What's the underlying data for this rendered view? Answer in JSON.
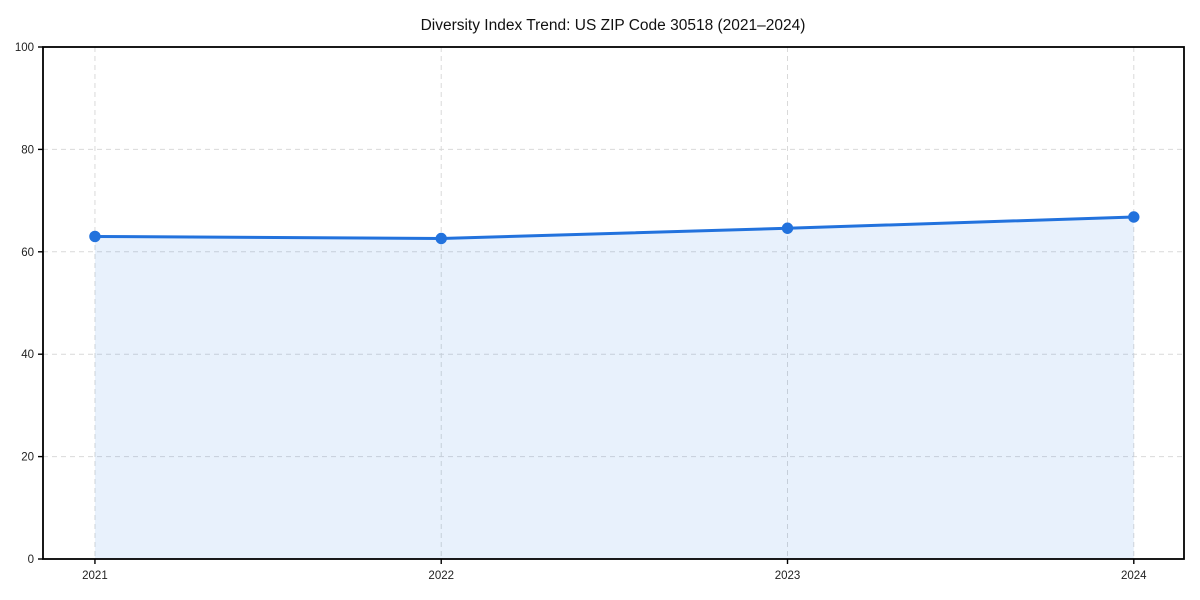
{
  "chart_data": {
    "type": "area",
    "title": "Diversity Index Trend: US ZIP Code 30518 (2021–2024)",
    "xlabel": "",
    "ylabel": "",
    "x": [
      2021,
      2022,
      2023,
      2024
    ],
    "xticklabels": [
      "2021",
      "2022",
      "2023",
      "2024"
    ],
    "series": [
      {
        "name": "Diversity Index",
        "values": [
          63.0,
          62.6,
          64.6,
          66.8
        ]
      }
    ],
    "ylim": [
      0,
      100
    ],
    "yticks": [
      0,
      20,
      40,
      60,
      80,
      100
    ],
    "xlim": [
      2020.85,
      2024.145
    ],
    "grid": true,
    "grid_style": "dashed",
    "legend": "none",
    "colors": {
      "line": "#2272dd",
      "marker": "#2272dd",
      "fill": "rgba(34,114,221,0.10)",
      "grid": "#d9d9d9",
      "spine": "#000000",
      "text": "#222222",
      "background": "#ffffff"
    }
  }
}
